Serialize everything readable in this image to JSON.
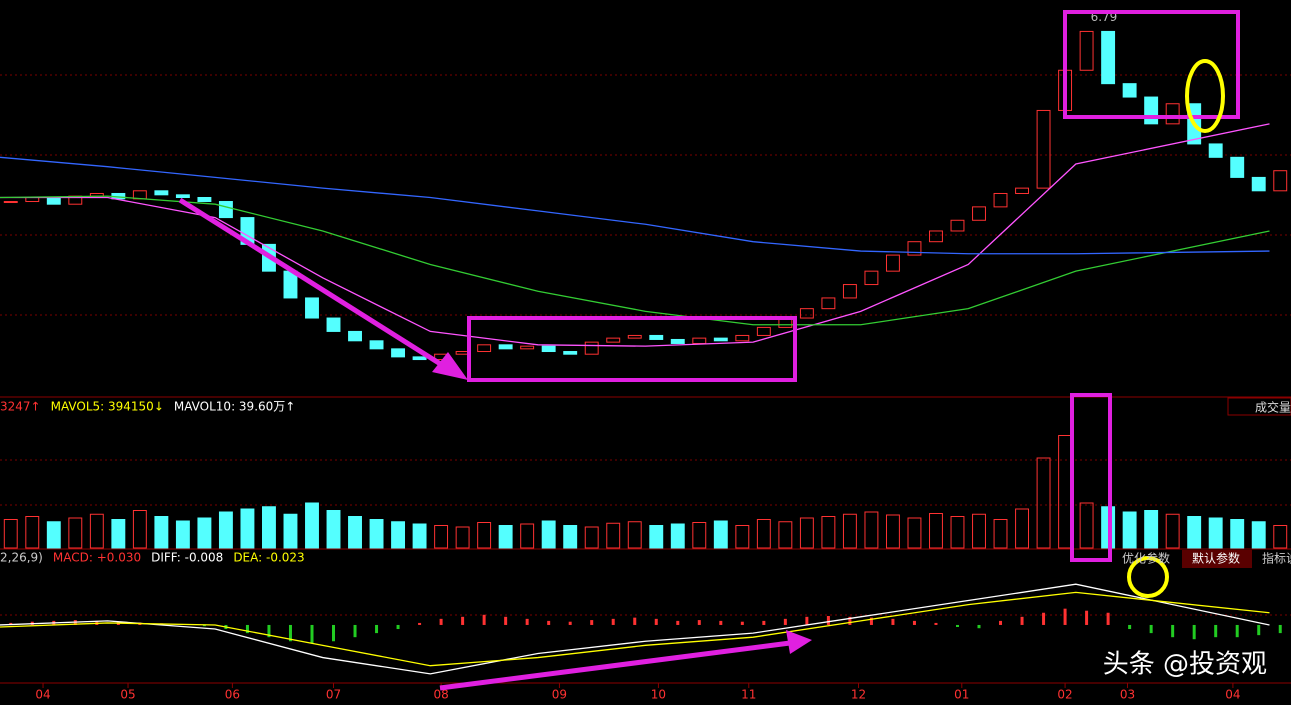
{
  "chart_data": {
    "type": "candlestick",
    "peak_label": "6.79",
    "candles": {
      "close": [
        5.52,
        5.55,
        5.5,
        5.56,
        5.58,
        5.54,
        5.6,
        5.57,
        5.55,
        5.52,
        5.4,
        5.2,
        5.0,
        4.8,
        4.65,
        4.55,
        4.48,
        4.42,
        4.36,
        4.34,
        4.38,
        4.4,
        4.45,
        4.42,
        4.44,
        4.4,
        4.38,
        4.47,
        4.5,
        4.52,
        4.49,
        4.46,
        4.5,
        4.48,
        4.52,
        4.58,
        4.65,
        4.72,
        4.8,
        4.9,
        5.0,
        5.12,
        5.22,
        5.3,
        5.38,
        5.48,
        5.58,
        5.62,
        6.2,
        6.5,
        6.79,
        6.4,
        6.3,
        6.1,
        6.25,
        5.95,
        5.85,
        5.7,
        5.6,
        5.75
      ],
      "up_color": "#ff3232",
      "down_color": "#54ffff"
    },
    "xlim": [
      0,
      60
    ],
    "ylim": [
      4.15,
      6.95
    ],
    "xticks": [
      {
        "value": 2.0,
        "label": "04"
      },
      {
        "value": 5.95,
        "label": "05"
      },
      {
        "value": 10.8,
        "label": "06"
      },
      {
        "value": 15.5,
        "label": "07"
      },
      {
        "value": 20.5,
        "label": "08"
      },
      {
        "value": 26.0,
        "label": "09"
      },
      {
        "value": 30.6,
        "label": "10"
      },
      {
        "value": 34.8,
        "label": "11"
      },
      {
        "value": 39.9,
        "label": "12"
      },
      {
        "value": 44.7,
        "label": "01"
      },
      {
        "value": 49.5,
        "label": "02"
      },
      {
        "value": 52.4,
        "label": "03"
      },
      {
        "value": 57.3,
        "label": "04"
      }
    ],
    "ma_x": [
      0,
      5,
      10,
      15,
      20,
      25,
      30,
      35,
      40,
      45,
      50,
      59
    ],
    "ma_series": [
      {
        "color": "#ff55ff",
        "values": [
          5.55,
          5.55,
          5.4,
          4.95,
          4.55,
          4.45,
          4.44,
          4.47,
          4.7,
          5.05,
          5.8,
          6.1
        ]
      },
      {
        "color": "#33cc33",
        "values": [
          5.55,
          5.56,
          5.5,
          5.3,
          5.05,
          4.85,
          4.7,
          4.6,
          4.6,
          4.72,
          5.0,
          5.3
        ]
      },
      {
        "color": "#3366ff",
        "values": [
          5.85,
          5.78,
          5.7,
          5.62,
          5.55,
          5.45,
          5.35,
          5.22,
          5.15,
          5.13,
          5.13,
          5.15
        ]
      }
    ],
    "volume": {
      "header": [
        "3247↑",
        "MAVOL5: 394150↓",
        "MAVOL10: 39.60万↑"
      ],
      "title": "成交量",
      "values": [
        38,
        42,
        35,
        40,
        45,
        38,
        50,
        42,
        36,
        40,
        48,
        52,
        55,
        45,
        60,
        50,
        42,
        38,
        35,
        32,
        30,
        28,
        34,
        30,
        32,
        36,
        30,
        28,
        33,
        35,
        30,
        32,
        34,
        36,
        30,
        38,
        35,
        40,
        42,
        45,
        48,
        44,
        40,
        46,
        42,
        45,
        38,
        52,
        120,
        150,
        60,
        55,
        48,
        50,
        45,
        42,
        40,
        38,
        35,
        30
      ],
      "ylim": [
        0,
        160
      ]
    },
    "macd": {
      "header": [
        "2,26,9)",
        "MACD: +0.030",
        "DIFF: -0.008",
        "DEA: -0.023"
      ],
      "buttons": [
        "优化参数",
        "默认参数",
        "指标说明"
      ],
      "hist": [
        0.005,
        0.008,
        0.01,
        0.012,
        0.01,
        0.008,
        0.006,
        0.004,
        0.002,
        -0.003,
        -0.01,
        -0.02,
        -0.03,
        -0.04,
        -0.045,
        -0.04,
        -0.03,
        -0.02,
        -0.01,
        0.005,
        0.015,
        0.02,
        0.025,
        0.02,
        0.015,
        0.01,
        0.008,
        0.012,
        0.015,
        0.018,
        0.015,
        0.01,
        0.012,
        0.01,
        0.008,
        0.01,
        0.015,
        0.02,
        0.022,
        0.02,
        0.018,
        0.015,
        0.01,
        0.005,
        -0.005,
        -0.008,
        0.01,
        0.02,
        0.03,
        0.04,
        0.035,
        0.03,
        -0.01,
        -0.02,
        -0.03,
        -0.035,
        -0.03,
        -0.03,
        -0.025,
        -0.02
      ],
      "diff": [
        0.0,
        0.01,
        -0.01,
        -0.08,
        -0.12,
        -0.07,
        -0.04,
        -0.02,
        0.02,
        0.06,
        0.1,
        0.0
      ],
      "dea": [
        -0.005,
        0.005,
        0.0,
        -0.05,
        -0.1,
        -0.08,
        -0.05,
        -0.03,
        0.01,
        0.05,
        0.08,
        0.03
      ],
      "ylim": [
        -0.14,
        0.13
      ]
    },
    "watermark": "头条 @投资观"
  }
}
